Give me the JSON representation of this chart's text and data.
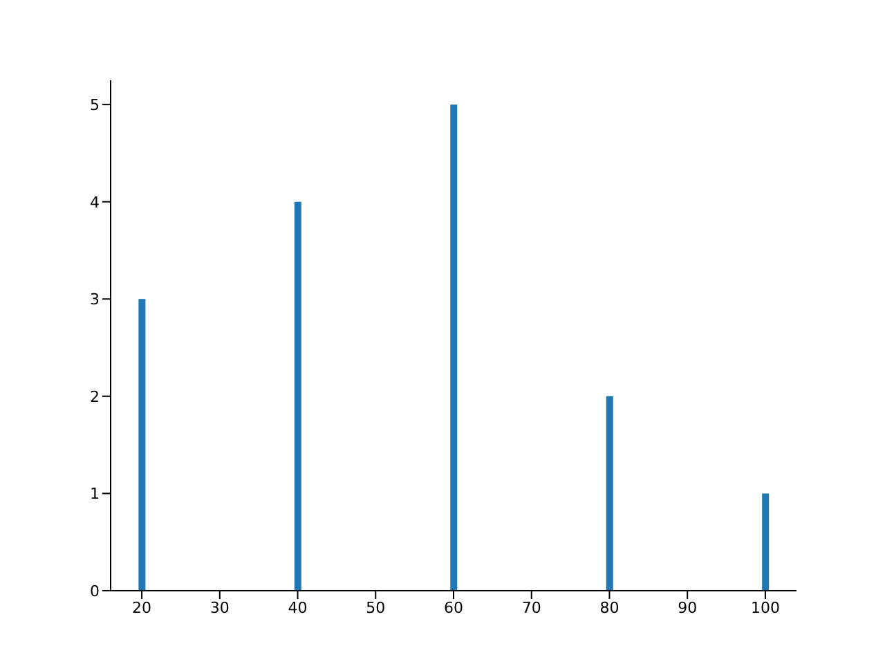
{
  "chart_data": {
    "type": "bar",
    "x": [
      20,
      40,
      60,
      80,
      100
    ],
    "values": [
      3,
      4,
      5,
      2,
      1
    ],
    "color": "#1f77b4",
    "xlim": [
      16,
      104
    ],
    "xticks": [
      20,
      30,
      40,
      50,
      60,
      70,
      80,
      90,
      100
    ],
    "ylim": [
      0,
      5.25
    ],
    "yticks": [
      0,
      1,
      2,
      3,
      4,
      5
    ],
    "grid": false,
    "legend": false
  }
}
